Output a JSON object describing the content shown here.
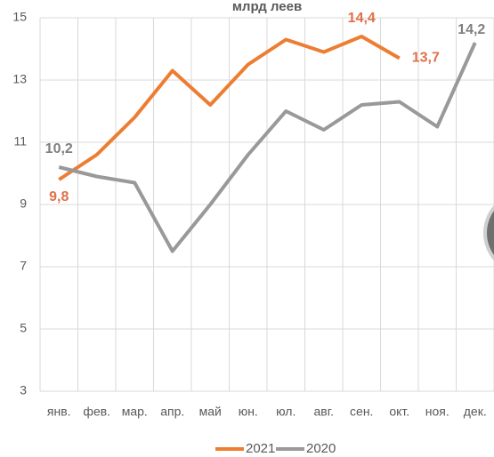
{
  "chart_data": {
    "type": "line",
    "title": "млрд леев",
    "categories": [
      "янв.",
      "фев.",
      "мар.",
      "апр.",
      "май",
      "юн.",
      "юл.",
      "авг.",
      "сен.",
      "окт.",
      "ноя.",
      "дек."
    ],
    "series": [
      {
        "name": "2021",
        "color": "#ed7d31",
        "label_color": "#e0704a",
        "values": [
          9.8,
          10.6,
          11.8,
          13.3,
          12.2,
          13.5,
          14.3,
          13.9,
          14.4,
          13.7,
          null,
          null
        ],
        "value_labels": [
          "9,8",
          null,
          null,
          null,
          null,
          null,
          null,
          null,
          "14,4",
          "13,7",
          null,
          null
        ]
      },
      {
        "name": "2020",
        "color": "#999999",
        "label_color": "#7f7f7f",
        "values": [
          10.2,
          9.9,
          9.7,
          7.5,
          9.0,
          10.6,
          12.0,
          11.4,
          12.2,
          12.3,
          11.5,
          14.2
        ],
        "value_labels": [
          "10,2",
          null,
          null,
          null,
          null,
          null,
          null,
          null,
          null,
          null,
          null,
          "14,2"
        ]
      }
    ],
    "ylim": [
      3,
      15
    ],
    "yticks": [
      3,
      5,
      7,
      9,
      11,
      13,
      15
    ],
    "grid": true,
    "legend": "bottom"
  }
}
